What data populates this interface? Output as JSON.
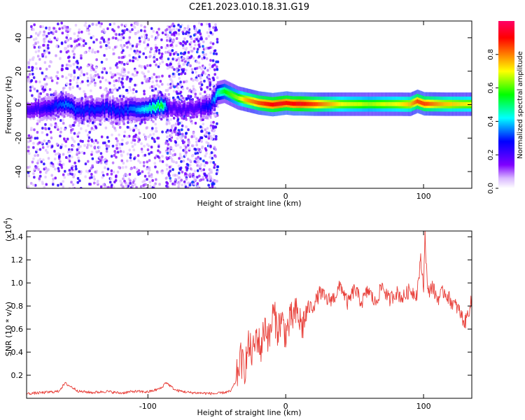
{
  "figure": {
    "title": "C2E1.2023.010.18.31.G19"
  },
  "chart_data": [
    {
      "type": "heatmap",
      "title": "C2E1.2023.010.18.31.G19",
      "xlabel": "Height of straight line (km)",
      "ylabel": "Frequency (Hz)",
      "xlim": [
        -188,
        135
      ],
      "ylim": [
        -50,
        50
      ],
      "x_ticks": [
        -100,
        0,
        100
      ],
      "y_ticks": [
        -40,
        -20,
        0,
        20,
        40
      ],
      "colorbar": {
        "label": "Normalized spectral amplitude",
        "range": [
          0.0,
          1.0
        ],
        "ticks": [
          0.0,
          0.2,
          0.4,
          0.6,
          0.8
        ],
        "colors": [
          "#ffffff",
          "#7f00ff",
          "#0000ff",
          "#00ffff",
          "#00ff00",
          "#ffff00",
          "#ff8000",
          "#ff0000",
          "#ff0080"
        ]
      },
      "noise_regions": [
        [
          -188,
          -90
        ],
        [
          -88,
          -50
        ]
      ],
      "signal_trace": {
        "x": [
          -188,
          -175,
          -160,
          -150,
          -140,
          -130,
          -120,
          -110,
          -100,
          -90,
          -85,
          -75,
          -65,
          -55,
          -50,
          -45,
          -40,
          -35,
          -30,
          -25,
          -20,
          -15,
          -10,
          -5,
          0,
          5,
          10,
          20,
          40,
          60,
          80,
          90,
          95,
          100,
          115,
          135
        ],
        "y": [
          -3,
          -2,
          0,
          -4,
          -3,
          -2,
          -4,
          -3,
          -2,
          0,
          -2,
          -3,
          -2,
          -1,
          7,
          8,
          6,
          4,
          3,
          2,
          1,
          0.5,
          0,
          0.5,
          1,
          0.5,
          0.5,
          0.3,
          0.3,
          0.3,
          0.3,
          0.2,
          2,
          0.5,
          0.3,
          0.3
        ],
        "amplitude": [
          0.2,
          0.25,
          0.35,
          0.3,
          0.3,
          0.3,
          0.3,
          0.35,
          0.45,
          0.55,
          0.2,
          0.2,
          0.2,
          0.3,
          0.45,
          0.55,
          0.6,
          0.65,
          0.75,
          0.8,
          0.85,
          0.88,
          0.9,
          0.92,
          0.9,
          0.9,
          0.92,
          0.85,
          0.7,
          0.65,
          0.7,
          0.75,
          0.85,
          0.85,
          0.75,
          0.7
        ]
      }
    },
    {
      "type": "line",
      "title": "",
      "xlabel": "Height of straight line (km)",
      "ylabel": "SNR (10 * v/v)",
      "y_multiplier": "(x10",
      "y_multiplier_exp": "4",
      "xlim": [
        -188,
        135
      ],
      "ylim": [
        0,
        14500
      ],
      "x_ticks": [
        -100,
        0,
        100
      ],
      "y_ticks": [
        2000,
        4000,
        6000,
        8000,
        10000,
        12000,
        14000
      ],
      "y_tick_labels": [
        "0.2",
        "0.4",
        "0.6",
        "0.8",
        "1.0",
        "1.2",
        "1.4"
      ],
      "color": "#e8403a",
      "series": [
        {
          "x": [
            -188,
            -175,
            -165,
            -160,
            -150,
            -140,
            -130,
            -120,
            -110,
            -100,
            -95,
            -90,
            -87,
            -80,
            -70,
            -60,
            -50,
            -45,
            -40,
            -36,
            -33,
            -30,
            -27,
            -24,
            -21,
            -18,
            -15,
            -12,
            -9,
            -6,
            -3,
            0,
            4,
            8,
            12,
            16,
            20,
            25,
            30,
            35,
            40,
            45,
            50,
            55,
            60,
            65,
            70,
            75,
            80,
            85,
            90,
            95,
            98,
            100,
            101,
            103,
            106,
            110,
            115,
            120,
            125,
            130,
            135
          ],
          "y": [
            400,
            500,
            600,
            1300,
            600,
            500,
            600,
            450,
            600,
            550,
            700,
            900,
            1400,
            700,
            500,
            450,
            400,
            500,
            600,
            1500,
            3500,
            2500,
            4500,
            3800,
            5500,
            4200,
            6500,
            5000,
            7500,
            6000,
            6800,
            5600,
            6900,
            7400,
            6200,
            7800,
            8000,
            9200,
            8500,
            8700,
            9800,
            8200,
            9500,
            8300,
            9400,
            8200,
            9800,
            8500,
            9200,
            8700,
            9400,
            9000,
            12000,
            9600,
            14500,
            9000,
            9800,
            8600,
            9300,
            8400,
            7800,
            6500,
            8500
          ]
        }
      ]
    }
  ]
}
